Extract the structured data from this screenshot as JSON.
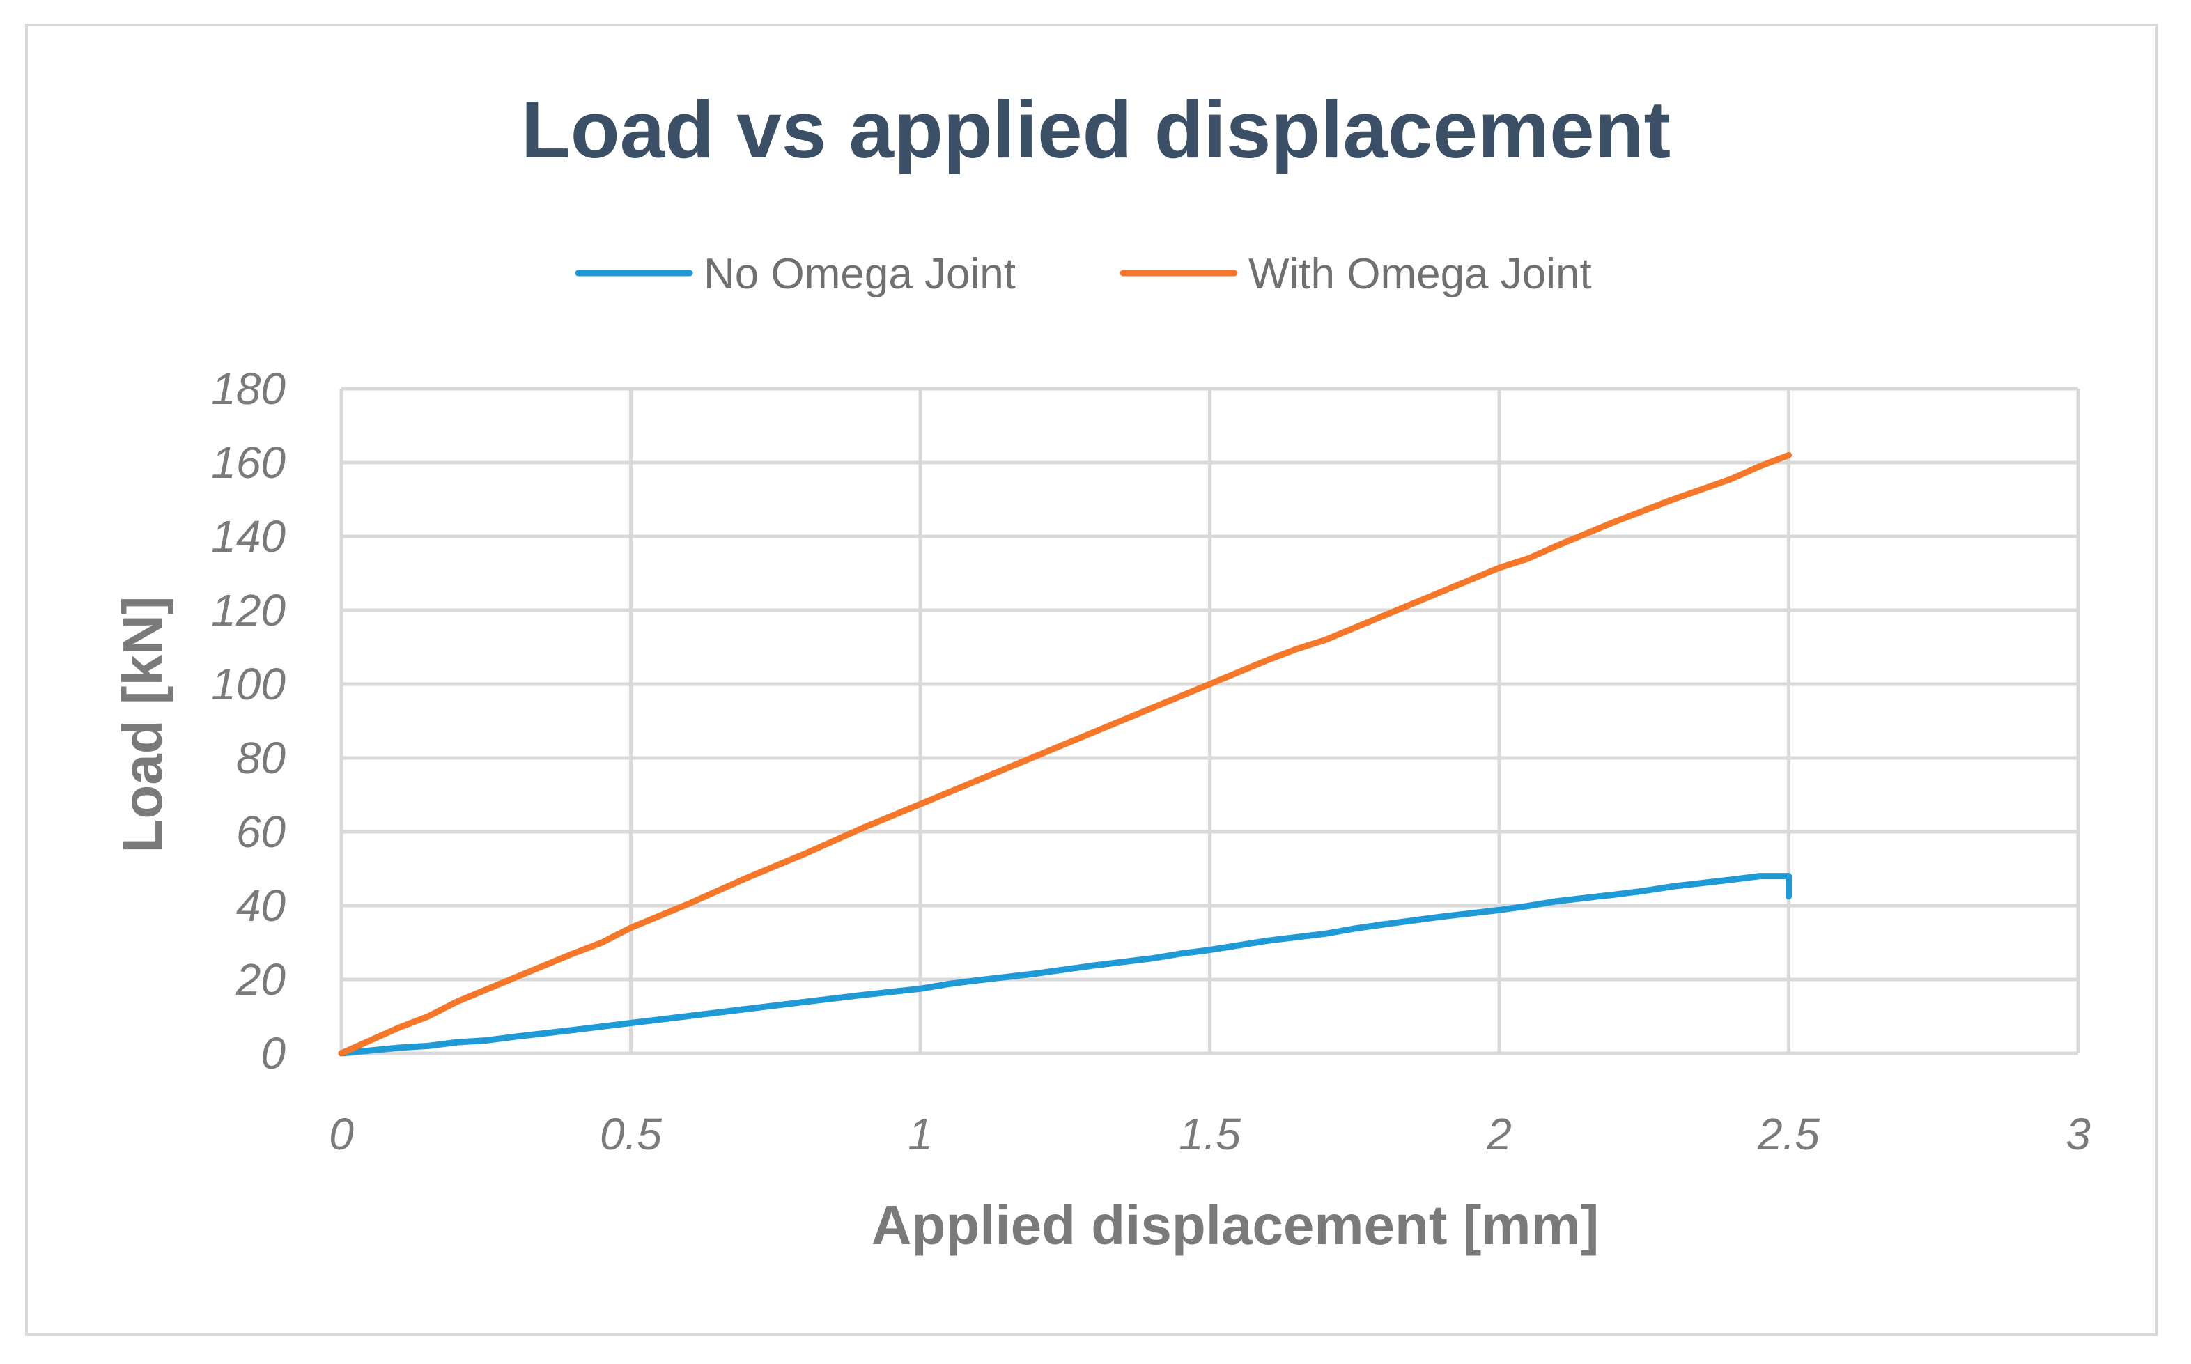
{
  "chart_data": {
    "type": "line",
    "title": "Load vs applied displacement",
    "xlabel": "Applied displacement [mm]",
    "ylabel": "Load [kN]",
    "xlim": [
      0,
      3
    ],
    "ylim": [
      0,
      180
    ],
    "x_ticks": [
      "0",
      "0.5",
      "1",
      "1.5",
      "2",
      "2.5",
      "3"
    ],
    "y_ticks": [
      "0",
      "20",
      "40",
      "60",
      "80",
      "100",
      "120",
      "140",
      "160",
      "180"
    ],
    "grid": true,
    "legend_position": "top",
    "series": [
      {
        "name": "No Omega Joint",
        "color": "#1f9ad6",
        "x": [
          0,
          0.1,
          0.15,
          0.2,
          0.25,
          0.3,
          0.4,
          0.5,
          0.6,
          0.7,
          0.8,
          0.9,
          1.0,
          1.05,
          1.1,
          1.2,
          1.3,
          1.4,
          1.45,
          1.5,
          1.6,
          1.7,
          1.75,
          1.8,
          1.9,
          2.0,
          2.05,
          2.1,
          2.2,
          2.25,
          2.3,
          2.4,
          2.45,
          2.5,
          2.5
        ],
        "y": [
          0,
          1.5,
          2,
          3,
          3.5,
          4.5,
          6.3,
          8.2,
          10.1,
          12,
          13.9,
          15.8,
          17.5,
          18.8,
          19.8,
          21.6,
          23.8,
          25.7,
          27,
          28,
          30.5,
          32.4,
          33.8,
          34.9,
          37,
          38.8,
          39.9,
          41.2,
          43,
          44,
          45.2,
          47,
          48,
          48,
          42.5
        ]
      },
      {
        "name": "With Omega Joint",
        "color": "#f5782a",
        "x": [
          0,
          0.1,
          0.15,
          0.2,
          0.3,
          0.4,
          0.45,
          0.5,
          0.6,
          0.7,
          0.8,
          0.9,
          1.0,
          1.1,
          1.2,
          1.3,
          1.4,
          1.5,
          1.6,
          1.65,
          1.7,
          1.8,
          1.9,
          2.0,
          2.05,
          2.1,
          2.2,
          2.3,
          2.4,
          2.45,
          2.5
        ],
        "y": [
          0,
          7,
          10,
          14,
          20.5,
          27,
          30,
          34,
          40.5,
          47.5,
          54,
          61,
          67.5,
          74,
          80.5,
          87,
          93.5,
          100,
          106.5,
          109.5,
          112,
          118.5,
          125,
          131.5,
          134,
          137.5,
          144,
          150,
          155.5,
          159,
          162
        ]
      }
    ]
  }
}
